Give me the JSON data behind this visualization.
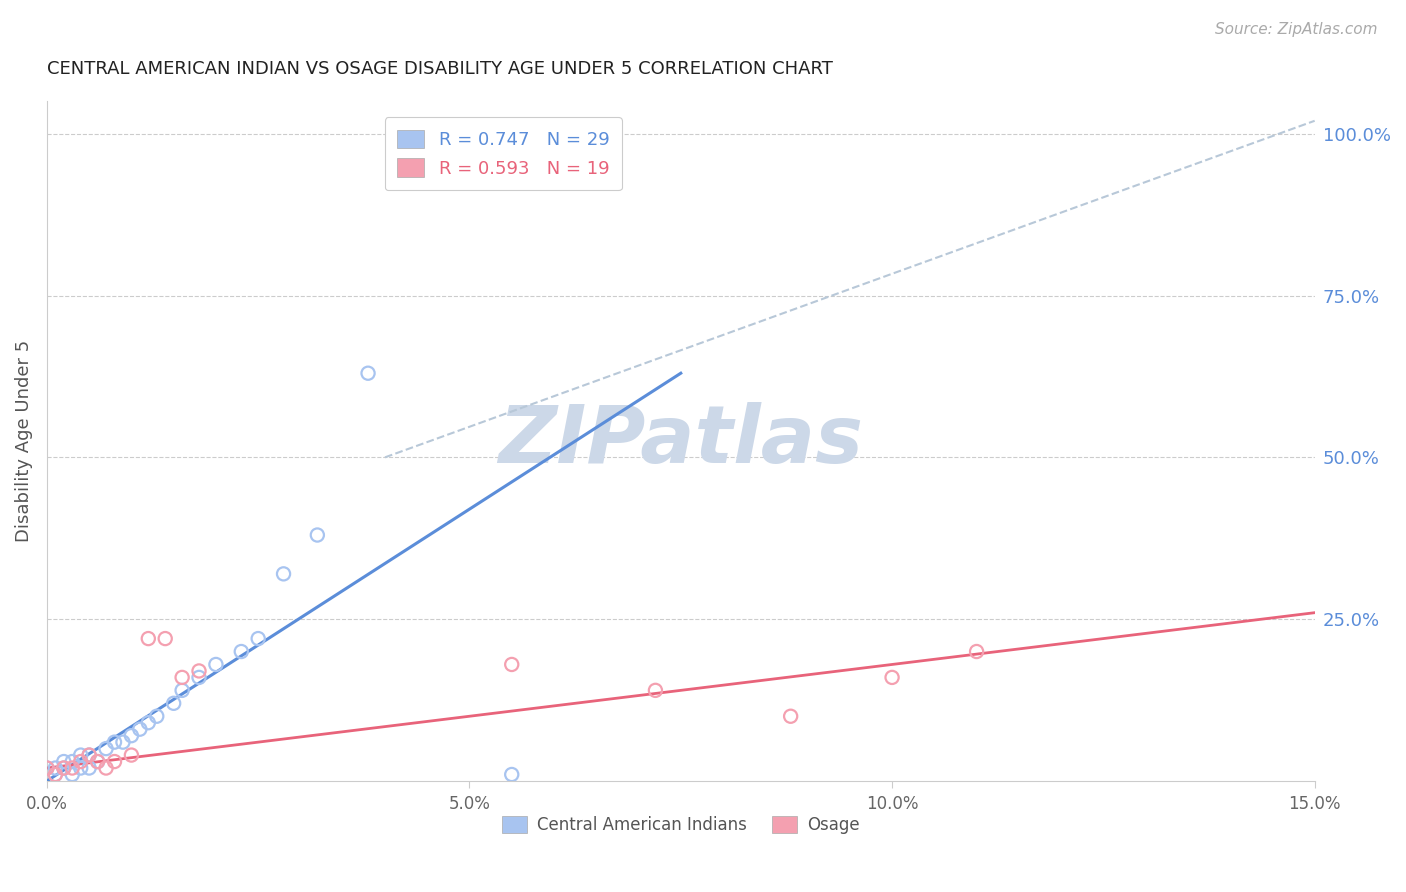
{
  "title": "CENTRAL AMERICAN INDIAN VS OSAGE DISABILITY AGE UNDER 5 CORRELATION CHART",
  "source": "Source: ZipAtlas.com",
  "ylabel": "Disability Age Under 5",
  "blue_label": "Central American Indians",
  "pink_label": "Osage",
  "blue_R": "0.747",
  "blue_N": "29",
  "pink_R": "0.593",
  "pink_N": "19",
  "blue_color": "#a8c4f0",
  "pink_color": "#f4a0b0",
  "blue_line_color": "#5b8dd9",
  "pink_line_color": "#e8637a",
  "ref_line_color": "#b8c8d8",
  "watermark": "ZIPatlas",
  "watermark_color": "#ccd8e8",
  "xlim": [
    0.0,
    0.15
  ],
  "ylim": [
    0.0,
    1.05
  ],
  "xticks": [
    0.0,
    0.05,
    0.1,
    0.15
  ],
  "xtick_labels": [
    "0.0%",
    "5.0%",
    "10.0%",
    "15.0%"
  ],
  "yticks_right": [
    0.25,
    0.5,
    0.75,
    1.0
  ],
  "ytick_labels_right": [
    "25.0%",
    "50.0%",
    "75.0%",
    "100.0%"
  ],
  "blue_scatter_x": [
    0.0,
    0.001,
    0.001,
    0.002,
    0.002,
    0.003,
    0.003,
    0.004,
    0.004,
    0.005,
    0.005,
    0.006,
    0.007,
    0.008,
    0.009,
    0.01,
    0.011,
    0.012,
    0.013,
    0.015,
    0.016,
    0.018,
    0.02,
    0.023,
    0.025,
    0.028,
    0.032,
    0.038,
    0.055
  ],
  "blue_scatter_y": [
    0.02,
    0.01,
    0.02,
    0.02,
    0.03,
    0.01,
    0.03,
    0.02,
    0.04,
    0.02,
    0.04,
    0.03,
    0.05,
    0.06,
    0.06,
    0.07,
    0.08,
    0.09,
    0.1,
    0.12,
    0.14,
    0.16,
    0.18,
    0.2,
    0.22,
    0.32,
    0.38,
    0.63,
    0.01
  ],
  "pink_scatter_x": [
    0.0,
    0.001,
    0.002,
    0.003,
    0.004,
    0.005,
    0.006,
    0.007,
    0.008,
    0.01,
    0.012,
    0.014,
    0.016,
    0.018,
    0.055,
    0.072,
    0.088,
    0.1,
    0.11
  ],
  "pink_scatter_y": [
    0.02,
    0.01,
    0.02,
    0.02,
    0.03,
    0.04,
    0.03,
    0.02,
    0.03,
    0.04,
    0.22,
    0.22,
    0.16,
    0.17,
    0.18,
    0.14,
    0.1,
    0.16,
    0.2
  ],
  "blue_line_x": [
    0.0,
    0.075
  ],
  "blue_line_y": [
    0.0,
    0.63
  ],
  "pink_line_x": [
    0.0,
    0.15
  ],
  "pink_line_y": [
    0.02,
    0.26
  ],
  "ref_line_x": [
    0.04,
    0.15
  ],
  "ref_line_y": [
    0.5,
    1.02
  ]
}
